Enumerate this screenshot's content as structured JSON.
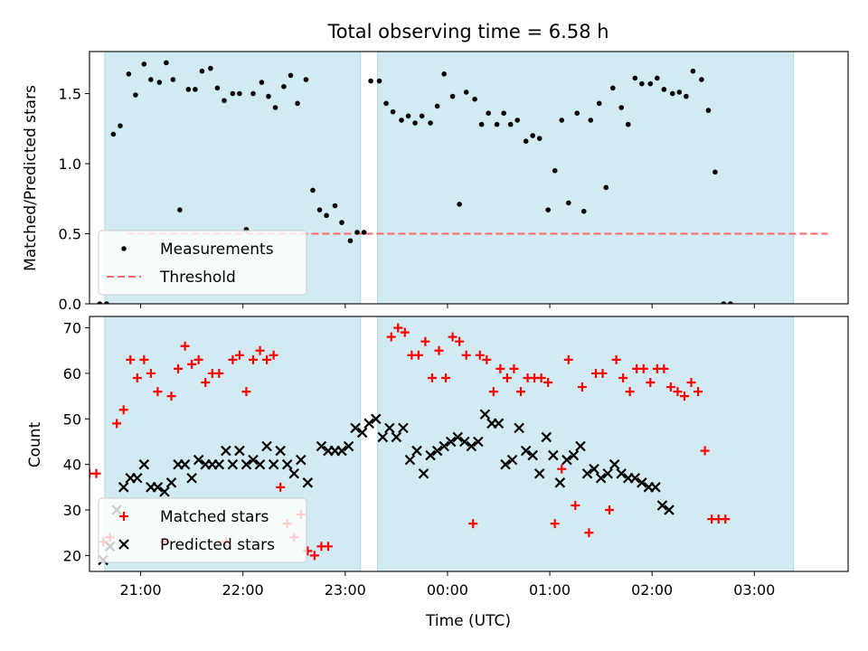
{
  "figure": {
    "title": "Total observing time = 6.58 h",
    "xlabel": "Time (UTC)"
  },
  "chart_data": [
    {
      "type": "scatter",
      "ylabel": "Matched/Predicted stars",
      "xlim": [
        "20:30",
        "03:55"
      ],
      "ylim": [
        0,
        1.8
      ],
      "yticks": [
        0.0,
        0.5,
        1.0,
        1.5
      ],
      "ytick_labels": [
        "0.0",
        "0.5",
        "1.0",
        "1.5"
      ],
      "shaded_intervals": [
        [
          "20:39",
          "23:09"
        ],
        [
          "23:19",
          "03:23"
        ]
      ],
      "shade_color": "#add8e6",
      "legend_position": "lower left",
      "threshold": {
        "name": "Threshold",
        "value": 0.5,
        "x_range": [
          "20:52",
          "03:43"
        ],
        "color": "#ff6666"
      },
      "series": [
        {
          "name": "Measurements",
          "color": "#000000",
          "marker": "dot",
          "points": [
            [
              "20:36",
              0.0
            ],
            [
              "20:40",
              0.0
            ],
            [
              "20:44",
              1.21
            ],
            [
              "20:48",
              1.27
            ],
            [
              "20:53",
              1.64
            ],
            [
              "20:57",
              1.49
            ],
            [
              "21:02",
              1.71
            ],
            [
              "21:06",
              1.6
            ],
            [
              "21:11",
              1.58
            ],
            [
              "21:15",
              1.72
            ],
            [
              "21:19",
              1.6
            ],
            [
              "21:23",
              0.67
            ],
            [
              "21:28",
              1.53
            ],
            [
              "21:32",
              1.53
            ],
            [
              "21:36",
              1.66
            ],
            [
              "21:41",
              1.68
            ],
            [
              "21:45",
              1.54
            ],
            [
              "21:49",
              1.45
            ],
            [
              "21:54",
              1.5
            ],
            [
              "21:58",
              1.5
            ],
            [
              "22:02",
              0.53
            ],
            [
              "22:06",
              1.5
            ],
            [
              "22:11",
              1.58
            ],
            [
              "22:15",
              1.48
            ],
            [
              "22:19",
              1.4
            ],
            [
              "22:24",
              1.55
            ],
            [
              "22:28",
              1.63
            ],
            [
              "22:32",
              1.43
            ],
            [
              "22:37",
              1.6
            ],
            [
              "22:41",
              0.81
            ],
            [
              "22:45",
              0.67
            ],
            [
              "22:49",
              0.63
            ],
            [
              "22:54",
              0.7
            ],
            [
              "22:58",
              0.58
            ],
            [
              "23:03",
              0.45
            ],
            [
              "23:07",
              0.51
            ],
            [
              "23:11",
              0.51
            ],
            [
              "23:15",
              1.59
            ],
            [
              "23:20",
              1.59
            ],
            [
              "23:24",
              1.43
            ],
            [
              "23:28",
              1.37
            ],
            [
              "23:33",
              1.31
            ],
            [
              "23:37",
              1.34
            ],
            [
              "23:41",
              1.29
            ],
            [
              "23:45",
              1.34
            ],
            [
              "23:50",
              1.29
            ],
            [
              "23:54",
              1.41
            ],
            [
              "23:58",
              1.64
            ],
            [
              "00:03",
              1.48
            ],
            [
              "00:07",
              0.71
            ],
            [
              "00:11",
              1.51
            ],
            [
              "00:16",
              1.46
            ],
            [
              "00:20",
              1.28
            ],
            [
              "00:24",
              1.36
            ],
            [
              "00:29",
              1.28
            ],
            [
              "00:33",
              1.36
            ],
            [
              "00:37",
              1.28
            ],
            [
              "00:41",
              1.31
            ],
            [
              "00:46",
              1.16
            ],
            [
              "00:50",
              1.2
            ],
            [
              "00:54",
              1.18
            ],
            [
              "00:59",
              0.67
            ],
            [
              "01:03",
              0.95
            ],
            [
              "01:07",
              1.31
            ],
            [
              "01:11",
              0.72
            ],
            [
              "01:16",
              1.36
            ],
            [
              "01:20",
              0.66
            ],
            [
              "01:24",
              1.31
            ],
            [
              "01:29",
              1.43
            ],
            [
              "01:33",
              0.83
            ],
            [
              "01:37",
              1.54
            ],
            [
              "01:42",
              1.4
            ],
            [
              "01:46",
              1.28
            ],
            [
              "01:50",
              1.61
            ],
            [
              "01:54",
              1.57
            ],
            [
              "01:59",
              1.57
            ],
            [
              "02:03",
              1.61
            ],
            [
              "02:07",
              1.53
            ],
            [
              "02:12",
              1.5
            ],
            [
              "02:16",
              1.51
            ],
            [
              "02:20",
              1.48
            ],
            [
              "02:24",
              1.66
            ],
            [
              "02:29",
              1.6
            ],
            [
              "02:33",
              1.38
            ],
            [
              "02:37",
              0.94
            ],
            [
              "02:42",
              0.0
            ],
            [
              "02:46",
              0.0
            ]
          ]
        }
      ]
    },
    {
      "type": "scatter",
      "ylabel": "Count",
      "xlim": [
        "20:30",
        "03:55"
      ],
      "ylim": [
        16.5,
        72.5
      ],
      "yticks": [
        20,
        30,
        40,
        50,
        60,
        70
      ],
      "ytick_labels": [
        "20",
        "30",
        "40",
        "50",
        "60",
        "70"
      ],
      "xticks": [
        "21:00",
        "22:00",
        "23:00",
        "00:00",
        "01:00",
        "02:00",
        "03:00"
      ],
      "shaded_intervals": [
        [
          "20:39",
          "23:09"
        ],
        [
          "23:19",
          "03:23"
        ]
      ],
      "shade_color": "#add8e6",
      "legend_position": "lower left",
      "series": [
        {
          "name": "Matched stars",
          "color": "#ff0000",
          "marker": "plus",
          "points": [
            [
              "20:30",
              38
            ],
            [
              "20:34",
              38
            ],
            [
              "20:38",
              23
            ],
            [
              "20:42",
              24
            ],
            [
              "20:46",
              49
            ],
            [
              "20:50",
              52
            ],
            [
              "20:54",
              63
            ],
            [
              "20:58",
              59
            ],
            [
              "21:02",
              63
            ],
            [
              "21:06",
              60
            ],
            [
              "21:10",
              56
            ],
            [
              "21:14",
              23
            ],
            [
              "21:18",
              55
            ],
            [
              "21:22",
              61
            ],
            [
              "21:26",
              66
            ],
            [
              "21:30",
              62
            ],
            [
              "21:34",
              63
            ],
            [
              "21:38",
              58
            ],
            [
              "21:42",
              60
            ],
            [
              "21:46",
              60
            ],
            [
              "21:50",
              23
            ],
            [
              "21:54",
              63
            ],
            [
              "21:58",
              64
            ],
            [
              "22:02",
              56
            ],
            [
              "22:06",
              63
            ],
            [
              "22:10",
              65
            ],
            [
              "22:14",
              63
            ],
            [
              "22:18",
              64
            ],
            [
              "22:22",
              35
            ],
            [
              "22:26",
              27
            ],
            [
              "22:30",
              24
            ],
            [
              "22:34",
              29
            ],
            [
              "22:38",
              21
            ],
            [
              "22:42",
              20
            ],
            [
              "22:46",
              22
            ],
            [
              "22:50",
              22
            ],
            [
              "23:27",
              68
            ],
            [
              "23:31",
              70
            ],
            [
              "23:35",
              69
            ],
            [
              "23:39",
              64
            ],
            [
              "23:43",
              64
            ],
            [
              "23:47",
              67
            ],
            [
              "23:51",
              59
            ],
            [
              "23:55",
              65
            ],
            [
              "23:59",
              59
            ],
            [
              "00:03",
              68
            ],
            [
              "00:07",
              67
            ],
            [
              "00:11",
              64
            ],
            [
              "00:15",
              27
            ],
            [
              "00:19",
              64
            ],
            [
              "00:23",
              63
            ],
            [
              "00:27",
              56
            ],
            [
              "00:31",
              61
            ],
            [
              "00:35",
              59
            ],
            [
              "00:39",
              61
            ],
            [
              "00:43",
              56
            ],
            [
              "00:47",
              59
            ],
            [
              "00:51",
              59
            ],
            [
              "00:55",
              59
            ],
            [
              "00:59",
              58
            ],
            [
              "01:03",
              27
            ],
            [
              "01:07",
              39
            ],
            [
              "01:11",
              63
            ],
            [
              "01:15",
              31
            ],
            [
              "01:19",
              57
            ],
            [
              "01:23",
              25
            ],
            [
              "01:27",
              60
            ],
            [
              "01:31",
              60
            ],
            [
              "01:35",
              30
            ],
            [
              "01:39",
              63
            ],
            [
              "01:43",
              59
            ],
            [
              "01:47",
              56
            ],
            [
              "01:51",
              61
            ],
            [
              "01:55",
              61
            ],
            [
              "01:59",
              58
            ],
            [
              "02:03",
              61
            ],
            [
              "02:07",
              61
            ],
            [
              "02:11",
              57
            ],
            [
              "02:15",
              56
            ],
            [
              "02:19",
              55
            ],
            [
              "02:23",
              58
            ],
            [
              "02:27",
              56
            ],
            [
              "02:31",
              43
            ],
            [
              "02:35",
              28
            ],
            [
              "02:39",
              28
            ],
            [
              "02:43",
              28
            ]
          ]
        },
        {
          "name": "Predicted stars",
          "color": "#000000",
          "marker": "x",
          "points": [
            [
              "20:38",
              19
            ],
            [
              "20:42",
              22
            ],
            [
              "20:46",
              30
            ],
            [
              "20:50",
              35
            ],
            [
              "20:54",
              37
            ],
            [
              "20:58",
              37
            ],
            [
              "21:02",
              40
            ],
            [
              "21:06",
              35
            ],
            [
              "21:10",
              35
            ],
            [
              "21:14",
              34
            ],
            [
              "21:18",
              36
            ],
            [
              "21:22",
              40
            ],
            [
              "21:26",
              40
            ],
            [
              "21:30",
              37
            ],
            [
              "21:34",
              41
            ],
            [
              "21:38",
              40
            ],
            [
              "21:42",
              40
            ],
            [
              "21:46",
              40
            ],
            [
              "21:50",
              43
            ],
            [
              "21:54",
              40
            ],
            [
              "21:58",
              43
            ],
            [
              "22:02",
              40
            ],
            [
              "22:06",
              41
            ],
            [
              "22:10",
              40
            ],
            [
              "22:14",
              44
            ],
            [
              "22:18",
              40
            ],
            [
              "22:22",
              43
            ],
            [
              "22:26",
              40
            ],
            [
              "22:30",
              38
            ],
            [
              "22:34",
              41
            ],
            [
              "22:38",
              36
            ],
            [
              "22:46",
              44
            ],
            [
              "22:50",
              43
            ],
            [
              "22:54",
              43
            ],
            [
              "22:58",
              43
            ],
            [
              "23:02",
              44
            ],
            [
              "23:06",
              48
            ],
            [
              "23:10",
              47
            ],
            [
              "23:14",
              49
            ],
            [
              "23:18",
              50
            ],
            [
              "23:22",
              46
            ],
            [
              "23:26",
              48
            ],
            [
              "23:30",
              46
            ],
            [
              "23:34",
              48
            ],
            [
              "23:38",
              41
            ],
            [
              "23:42",
              43
            ],
            [
              "23:46",
              38
            ],
            [
              "23:50",
              42
            ],
            [
              "23:54",
              43
            ],
            [
              "23:58",
              44
            ],
            [
              "00:02",
              45
            ],
            [
              "00:06",
              46
            ],
            [
              "00:10",
              45
            ],
            [
              "00:14",
              44
            ],
            [
              "00:18",
              45
            ],
            [
              "00:22",
              51
            ],
            [
              "00:26",
              49
            ],
            [
              "00:30",
              49
            ],
            [
              "00:34",
              40
            ],
            [
              "00:38",
              41
            ],
            [
              "00:42",
              48
            ],
            [
              "00:46",
              43
            ],
            [
              "00:50",
              42
            ],
            [
              "00:54",
              38
            ],
            [
              "00:58",
              46
            ],
            [
              "01:02",
              42
            ],
            [
              "01:06",
              36
            ],
            [
              "01:10",
              41
            ],
            [
              "01:14",
              42
            ],
            [
              "01:18",
              44
            ],
            [
              "01:22",
              38
            ],
            [
              "01:26",
              39
            ],
            [
              "01:30",
              37
            ],
            [
              "01:34",
              38
            ],
            [
              "01:38",
              40
            ],
            [
              "01:42",
              38
            ],
            [
              "01:46",
              37
            ],
            [
              "01:50",
              37
            ],
            [
              "01:54",
              36
            ],
            [
              "01:58",
              35
            ],
            [
              "02:02",
              35
            ],
            [
              "02:06",
              31
            ],
            [
              "02:10",
              30
            ]
          ]
        }
      ]
    }
  ]
}
